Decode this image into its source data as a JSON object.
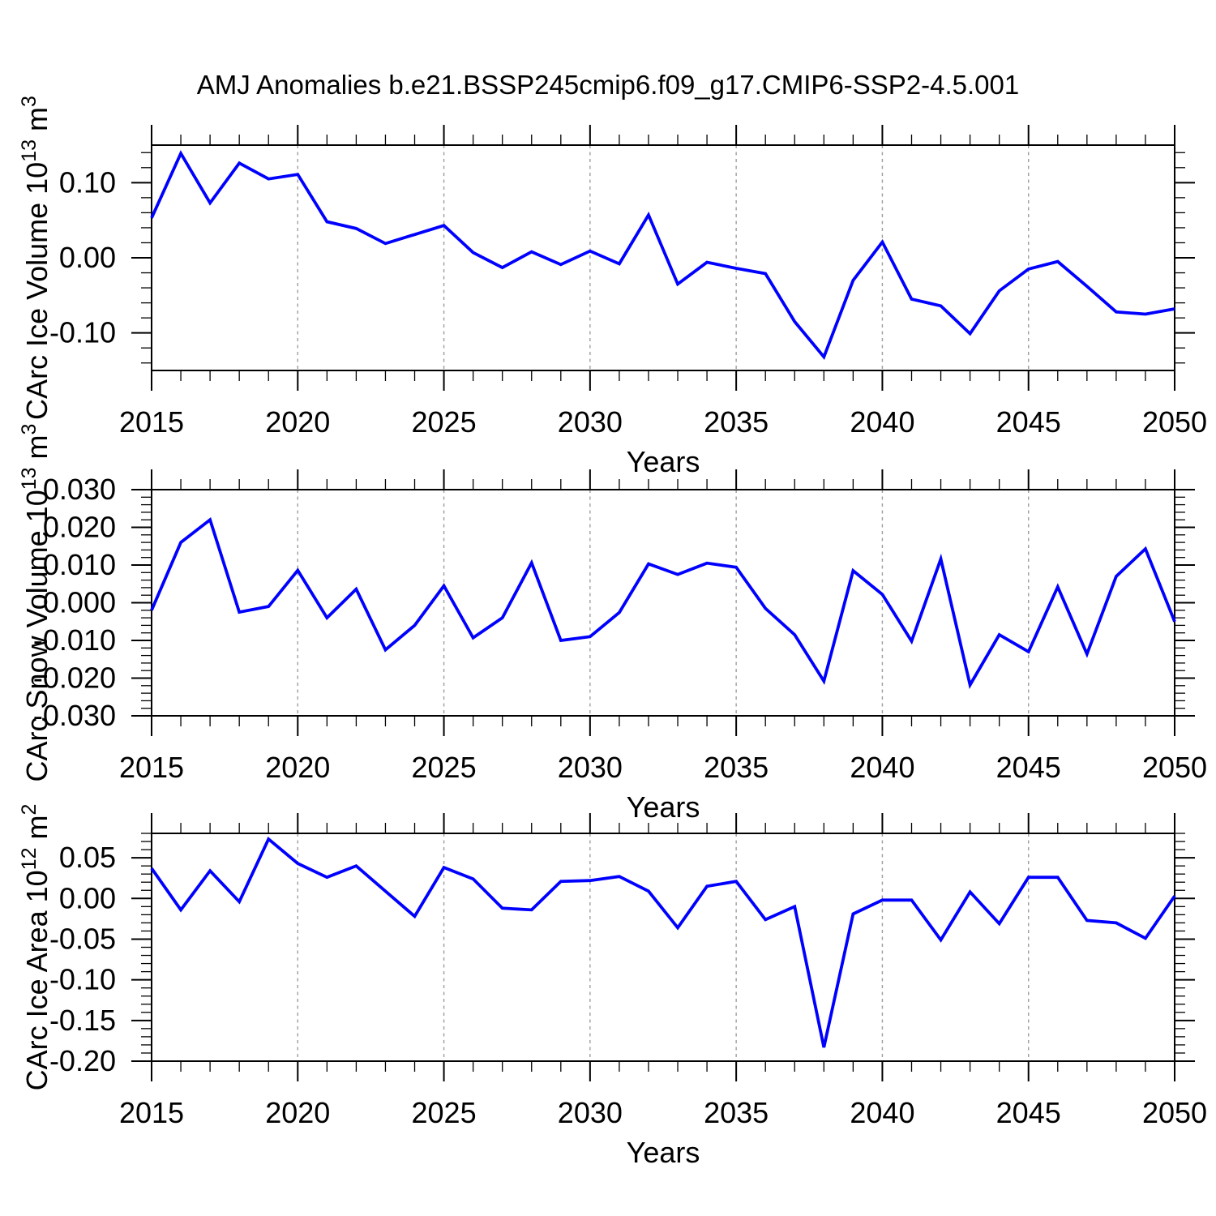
{
  "title": "AMJ Anomalies b.e21.BSSP245cmip6.f09_g17.CMIP6-SSP2-4.5.001",
  "colors": {
    "line": "#0000ff",
    "axis": "#000000",
    "grid": "#9e9e9e",
    "background": "#ffffff",
    "text": "#000000"
  },
  "chart_data": [
    {
      "type": "line",
      "name": "carc-ice-volume",
      "xlabel": "Years",
      "ylabel": "CArc Ice Volume 10^13 m^3",
      "ylabel_parts": [
        "CArc Ice Volume 10",
        "^13",
        " m",
        "^3"
      ],
      "xlim": [
        2015,
        2050
      ],
      "ylim": [
        -0.15,
        0.15
      ],
      "xticks": [
        2015,
        2020,
        2025,
        2030,
        2035,
        2040,
        2045,
        2050
      ],
      "x_minor_step": 1,
      "grid_x": [
        2020,
        2025,
        2030,
        2035,
        2040,
        2045
      ],
      "yticks": [
        {
          "v": 0.1,
          "label": "0.10"
        },
        {
          "v": 0.0,
          "label": "0.00"
        },
        {
          "v": -0.1,
          "label": "-0.10"
        }
      ],
      "y_minor_step": 0.02,
      "x": [
        2015,
        2016,
        2017,
        2018,
        2019,
        2020,
        2021,
        2022,
        2023,
        2024,
        2025,
        2026,
        2027,
        2028,
        2029,
        2030,
        2031,
        2032,
        2033,
        2034,
        2035,
        2036,
        2037,
        2038,
        2039,
        2040,
        2041,
        2042,
        2043,
        2044,
        2045,
        2046,
        2047,
        2048,
        2049,
        2050
      ],
      "values": [
        0.053,
        0.139,
        0.073,
        0.126,
        0.105,
        0.111,
        0.048,
        0.039,
        0.019,
        0.031,
        0.043,
        0.007,
        -0.013,
        0.008,
        -0.009,
        0.009,
        -0.008,
        0.057,
        -0.035,
        -0.006,
        -0.014,
        -0.021,
        -0.085,
        -0.132,
        -0.03,
        0.021,
        -0.055,
        -0.064,
        -0.101,
        -0.044,
        -0.015,
        -0.005,
        -0.038,
        -0.072,
        -0.075,
        -0.068
      ]
    },
    {
      "type": "line",
      "name": "carc-snow-volume",
      "xlabel": "Years",
      "ylabel": "CArc Snow Volume 10^13 m^3",
      "ylabel_parts": [
        "CArc Snow Volume 10",
        "^13",
        " m",
        "^3"
      ],
      "xlim": [
        2015,
        2050
      ],
      "ylim": [
        -0.03,
        0.03
      ],
      "xticks": [
        2015,
        2020,
        2025,
        2030,
        2035,
        2040,
        2045,
        2050
      ],
      "x_minor_step": 1,
      "grid_x": [
        2020,
        2025,
        2030,
        2035,
        2040,
        2045
      ],
      "yticks": [
        {
          "v": 0.03,
          "label": "0.030"
        },
        {
          "v": 0.02,
          "label": "0.020"
        },
        {
          "v": 0.01,
          "label": "0.010"
        },
        {
          "v": 0.0,
          "label": "0.000"
        },
        {
          "v": -0.01,
          "label": "-0.010"
        },
        {
          "v": -0.02,
          "label": "-0.020"
        },
        {
          "v": -0.03,
          "label": "-0.030"
        }
      ],
      "y_minor_step": 0.002,
      "x": [
        2015,
        2016,
        2017,
        2018,
        2019,
        2020,
        2021,
        2022,
        2023,
        2024,
        2025,
        2026,
        2027,
        2028,
        2029,
        2030,
        2031,
        2032,
        2033,
        2034,
        2035,
        2036,
        2037,
        2038,
        2039,
        2040,
        2041,
        2042,
        2043,
        2044,
        2045,
        2046,
        2047,
        2048,
        2049,
        2050
      ],
      "values": [
        -0.002,
        0.016,
        0.022,
        -0.0025,
        -0.001,
        0.0086,
        -0.004,
        0.0036,
        -0.0125,
        -0.006,
        0.0045,
        -0.0093,
        -0.004,
        0.0106,
        -0.01,
        -0.009,
        -0.0026,
        0.0103,
        0.0075,
        0.0105,
        0.0094,
        -0.0015,
        -0.0085,
        -0.0208,
        0.0085,
        0.0022,
        -0.0102,
        0.0116,
        -0.0218,
        -0.0085,
        -0.013,
        0.0042,
        -0.0136,
        0.007,
        0.0143,
        -0.005
      ]
    },
    {
      "type": "line",
      "name": "carc-ice-area",
      "xlabel": "Years",
      "ylabel": "CArc Ice Area 10^12 m^2",
      "ylabel_parts": [
        "CArc Ice Area 10",
        "^12",
        " m",
        "^2"
      ],
      "xlim": [
        2015,
        2050
      ],
      "ylim": [
        -0.2,
        0.08
      ],
      "xticks": [
        2015,
        2020,
        2025,
        2030,
        2035,
        2040,
        2045,
        2050
      ],
      "x_minor_step": 1,
      "grid_x": [
        2020,
        2025,
        2030,
        2035,
        2040,
        2045
      ],
      "yticks": [
        {
          "v": 0.05,
          "label": "0.05"
        },
        {
          "v": 0.0,
          "label": "0.00"
        },
        {
          "v": -0.05,
          "label": "-0.05"
        },
        {
          "v": -0.1,
          "label": "-0.10"
        },
        {
          "v": -0.15,
          "label": "-0.15"
        },
        {
          "v": -0.2,
          "label": "-0.20"
        }
      ],
      "y_minor_step": 0.01,
      "x": [
        2015,
        2016,
        2017,
        2018,
        2019,
        2020,
        2021,
        2022,
        2023,
        2024,
        2025,
        2026,
        2027,
        2028,
        2029,
        2030,
        2031,
        2032,
        2033,
        2034,
        2035,
        2036,
        2037,
        2038,
        2039,
        2040,
        2041,
        2042,
        2043,
        2044,
        2045,
        2046,
        2047,
        2048,
        2049,
        2050
      ],
      "values": [
        0.037,
        -0.014,
        0.034,
        -0.004,
        0.073,
        0.043,
        0.026,
        0.04,
        0.009,
        -0.022,
        0.038,
        0.024,
        -0.012,
        -0.014,
        0.021,
        0.022,
        0.027,
        0.009,
        -0.036,
        0.015,
        0.021,
        -0.026,
        -0.01,
        -0.183,
        -0.019,
        -0.002,
        -0.002,
        -0.051,
        0.008,
        -0.031,
        0.026,
        0.026,
        -0.027,
        -0.03,
        -0.049,
        0.003
      ]
    }
  ]
}
